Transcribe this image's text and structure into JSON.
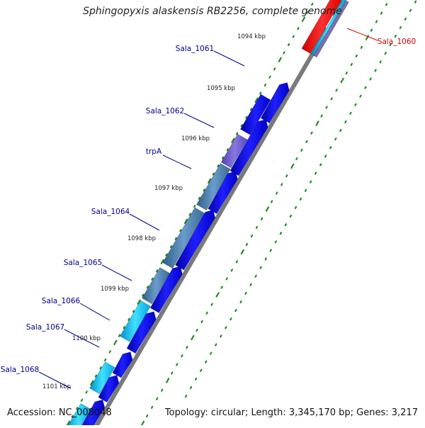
{
  "title": "Sphingopyxis alaskensis RB2256, complete genome",
  "footer": {
    "accession": "Accession: NC_008048",
    "summary": "Topology: circular; Length: 3,345,170 bp; Genes: 3,217"
  },
  "ticks": [
    "1094 kbp",
    "1095 kbp",
    "1096 kbp",
    "1097 kbp",
    "1098 kbp",
    "1099 kbp",
    "1100 kbp",
    "1101 kbp"
  ],
  "gene_labels": [
    {
      "name": "Sala_1061",
      "color": "#00008b"
    },
    {
      "name": "Sala_1062",
      "color": "#00008b"
    },
    {
      "name": "trpA",
      "color": "#00008b"
    },
    {
      "name": "Sala_1064",
      "color": "#00008b"
    },
    {
      "name": "Sala_1065",
      "color": "#00008b"
    },
    {
      "name": "Sala_1066",
      "color": "#00008b"
    },
    {
      "name": "Sala_1067",
      "color": "#00008b"
    },
    {
      "name": "Sala_1068",
      "color": "#00008b"
    },
    {
      "name": "Sala_1060",
      "color": "#cc0000"
    }
  ],
  "colors": {
    "cds_forward": "#0000ee",
    "cds_purple": "#6a5acd",
    "cds_steel": "#4682b4",
    "cds_cyan": "#00bfff",
    "cds_red": "#ff0000",
    "backbone": "#808080",
    "tick_green": "#228b22"
  }
}
